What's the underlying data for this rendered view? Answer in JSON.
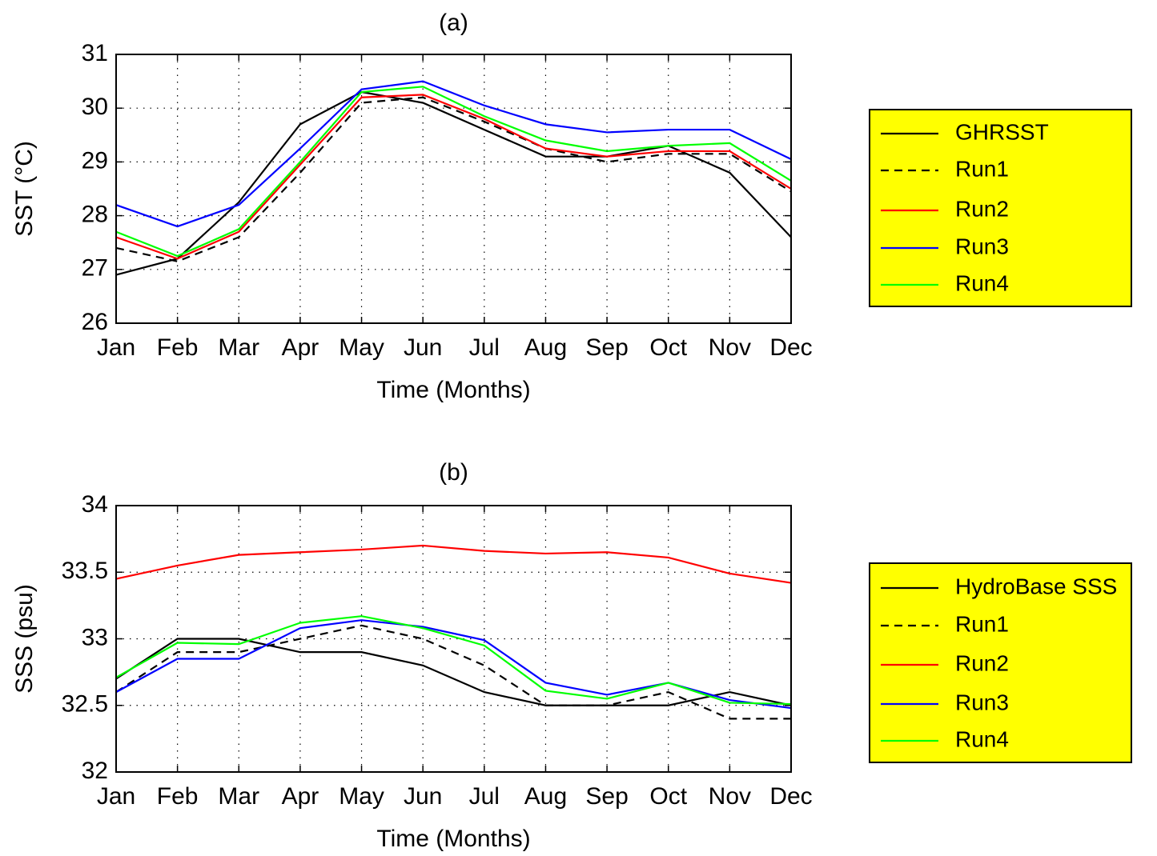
{
  "chart_data": [
    {
      "type": "line",
      "title": "(a)",
      "xlabel": "Time (Months)",
      "ylabel": "SST (°C)",
      "categories": [
        "Jan",
        "Feb",
        "Mar",
        "Apr",
        "May",
        "Jun",
        "Jul",
        "Aug",
        "Sep",
        "Oct",
        "Nov",
        "Dec"
      ],
      "ylim": [
        26,
        31
      ],
      "yticks": [
        26,
        27,
        28,
        29,
        30,
        31
      ],
      "grid": true,
      "legend": "right",
      "series": [
        {
          "name": "GHRSST",
          "color": "#000000",
          "linestyle": "solid",
          "values": [
            26.9,
            27.2,
            28.25,
            29.7,
            30.3,
            30.1,
            29.6,
            29.1,
            29.1,
            29.3,
            28.8,
            27.6
          ]
        },
        {
          "name": "Run1",
          "color": "#000000",
          "linestyle": "dashed",
          "values": [
            27.4,
            27.15,
            27.6,
            28.8,
            30.1,
            30.2,
            29.75,
            29.25,
            29.0,
            29.15,
            29.15,
            28.45
          ]
        },
        {
          "name": "Run2",
          "color": "#ff0000",
          "linestyle": "solid",
          "values": [
            27.6,
            27.2,
            27.7,
            28.95,
            30.2,
            30.25,
            29.8,
            29.25,
            29.1,
            29.2,
            29.2,
            28.5
          ]
        },
        {
          "name": "Run3",
          "color": "#0000ff",
          "linestyle": "solid",
          "values": [
            28.2,
            27.8,
            28.2,
            29.25,
            30.35,
            30.5,
            30.05,
            29.7,
            29.55,
            29.6,
            29.6,
            29.05
          ]
        },
        {
          "name": "Run4",
          "color": "#00ff00",
          "linestyle": "solid",
          "values": [
            27.7,
            27.25,
            27.75,
            29.0,
            30.3,
            30.4,
            29.85,
            29.4,
            29.2,
            29.3,
            29.35,
            28.65
          ]
        }
      ]
    },
    {
      "type": "line",
      "title": "(b)",
      "xlabel": "Time (Months)",
      "ylabel": "SSS (psu)",
      "categories": [
        "Jan",
        "Feb",
        "Mar",
        "Apr",
        "May",
        "Jun",
        "Jul",
        "Aug",
        "Sep",
        "Oct",
        "Nov",
        "Dec"
      ],
      "ylim": [
        32,
        34
      ],
      "yticks": [
        32,
        32.5,
        33,
        33.5,
        34
      ],
      "grid": true,
      "legend": "right",
      "series": [
        {
          "name": "HydroBase SSS",
          "color": "#000000",
          "linestyle": "solid",
          "values": [
            32.7,
            33.0,
            33.0,
            32.9,
            32.9,
            32.8,
            32.6,
            32.5,
            32.5,
            32.5,
            32.6,
            32.5
          ]
        },
        {
          "name": "Run1",
          "color": "#000000",
          "linestyle": "dashed",
          "values": [
            32.6,
            32.9,
            32.9,
            33.0,
            33.1,
            33.0,
            32.8,
            32.5,
            32.5,
            32.6,
            32.4,
            32.4
          ]
        },
        {
          "name": "Run2",
          "color": "#ff0000",
          "linestyle": "solid",
          "values": [
            33.45,
            33.55,
            33.63,
            33.65,
            33.67,
            33.7,
            33.66,
            33.64,
            33.65,
            33.61,
            33.49,
            33.42
          ]
        },
        {
          "name": "Run3",
          "color": "#0000ff",
          "linestyle": "solid",
          "values": [
            32.6,
            32.85,
            32.85,
            33.08,
            33.14,
            33.09,
            32.99,
            32.67,
            32.58,
            32.67,
            32.54,
            32.48
          ]
        },
        {
          "name": "Run4",
          "color": "#00ff00",
          "linestyle": "solid",
          "values": [
            32.71,
            32.97,
            32.96,
            33.12,
            33.17,
            33.08,
            32.95,
            32.61,
            32.55,
            32.67,
            32.52,
            32.51
          ]
        }
      ]
    }
  ]
}
